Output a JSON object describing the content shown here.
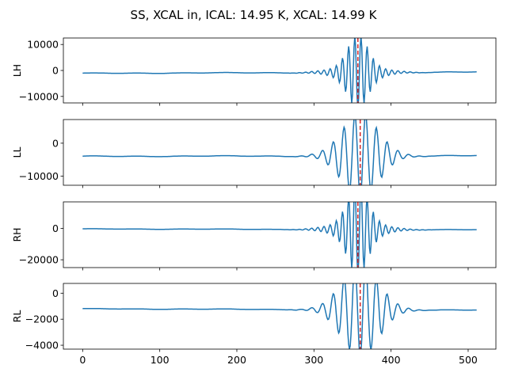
{
  "title": "SS, XCAL in, ICAL: 14.95 K, XCAL: 14.99 K",
  "colors": {
    "line": "#1f77b4",
    "marker": "#d62728",
    "frame": "#000000"
  },
  "chart_data": [
    {
      "type": "line",
      "ylabel": "LH",
      "xlim": [
        -25,
        536
      ],
      "ylim": [
        -12500,
        12500
      ],
      "yticks": [
        10000,
        0,
        -10000
      ],
      "ytick_labels": [
        "10000",
        "0",
        "−10000"
      ],
      "baseline": -1100,
      "baseline_end": -600,
      "peak_index": 357,
      "packet": {
        "center": 357,
        "max_dev": 11600,
        "period": 8,
        "wobble": 350
      },
      "vline_x": 357
    },
    {
      "type": "line",
      "ylabel": "LL",
      "xlim": [
        -25,
        536
      ],
      "ylim": [
        -12800,
        7200
      ],
      "yticks": [
        0,
        -10000
      ],
      "ytick_labels": [
        "0",
        "−10000"
      ],
      "baseline": -4000,
      "baseline_end": -3800,
      "peak_index": 360,
      "packet": {
        "center": 360,
        "max_dev": 10600,
        "period": 14,
        "wobble": 350
      },
      "vline_x": 360
    },
    {
      "type": "line",
      "ylabel": "RH",
      "xlim": [
        -25,
        536
      ],
      "ylim": [
        -25000,
        17000
      ],
      "yticks": [
        0,
        -20000
      ],
      "ytick_labels": [
        "0",
        "−20000"
      ],
      "baseline": -300,
      "baseline_end": -800,
      "peak_index": 357,
      "packet": {
        "center": 357,
        "max_dev": 24000,
        "period": 8,
        "wobble": 400
      },
      "vline_x": 357
    },
    {
      "type": "line",
      "ylabel": "RL",
      "xlim": [
        -25,
        536
      ],
      "ylim": [
        -4300,
        750
      ],
      "yticks": [
        0,
        -2000,
        -4000
      ],
      "ytick_labels": [
        "0",
        "−2000",
        "−4000"
      ],
      "baseline": -1200,
      "baseline_end": -1300,
      "peak_index": 360,
      "packet": {
        "center": 360,
        "max_dev": 3000,
        "period": 14,
        "wobble": 60
      },
      "vline_x": 360
    }
  ],
  "xticks": [
    0,
    100,
    200,
    300,
    400,
    500
  ],
  "xtick_labels": [
    "0",
    "100",
    "200",
    "300",
    "400",
    "500"
  ],
  "n_samples": 512
}
